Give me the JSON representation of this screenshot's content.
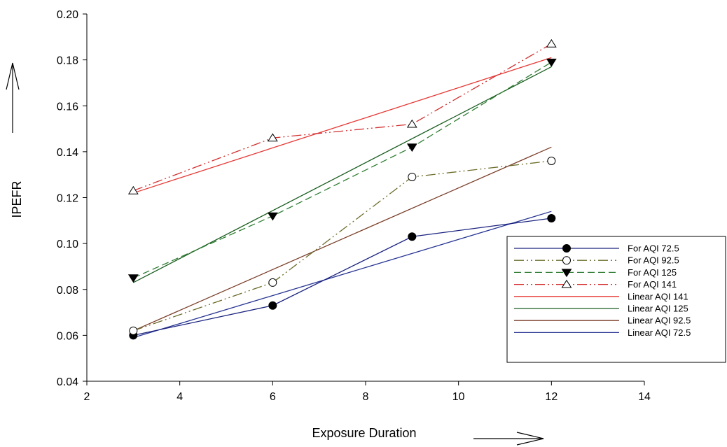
{
  "chart_data": {
    "type": "line",
    "title": "",
    "xlabel": "Exposure Duration",
    "ylabel": "IPEFR",
    "xlim": [
      2,
      14
    ],
    "ylim": [
      0.04,
      0.2
    ],
    "x_ticks": [
      2,
      4,
      6,
      8,
      10,
      12,
      14
    ],
    "y_ticks": [
      "0.04",
      "0.06",
      "0.08",
      "0.10",
      "0.12",
      "0.14",
      "0.16",
      "0.18",
      "0.20"
    ],
    "grid": false,
    "legend_position": "bottom-right",
    "series": [
      {
        "name": "For AQI 72.5",
        "x": [
          3,
          6,
          9,
          12
        ],
        "y": [
          0.06,
          0.073,
          0.103,
          0.111
        ],
        "color": "#1a237e",
        "dash": "solid",
        "marker": "filled-circle"
      },
      {
        "name": "For AQI 92.5",
        "x": [
          3,
          6,
          9,
          12
        ],
        "y": [
          0.062,
          0.083,
          0.129,
          0.136
        ],
        "color": "#6b6b2a",
        "dash": "dash-dot-dot",
        "marker": "open-circle"
      },
      {
        "name": "For AQI 125",
        "x": [
          3,
          6,
          9,
          12
        ],
        "y": [
          0.085,
          0.112,
          0.142,
          0.179
        ],
        "color": "#2e7d32",
        "dash": "dashed",
        "marker": "filled-triangle-down"
      },
      {
        "name": "For AQI 141",
        "x": [
          3,
          6,
          9,
          12
        ],
        "y": [
          0.123,
          0.146,
          0.152,
          0.187
        ],
        "color": "#d32f2f",
        "dash": "dash-dot-dot",
        "marker": "open-triangle-up"
      },
      {
        "name": "Linear AQI 141",
        "x": [
          3,
          12
        ],
        "y": [
          0.122,
          0.181
        ],
        "color": "#e53935",
        "dash": "solid",
        "marker": "none"
      },
      {
        "name": "Linear AQI 125",
        "x": [
          3,
          12
        ],
        "y": [
          0.083,
          0.177
        ],
        "color": "#1b5e20",
        "dash": "solid",
        "marker": "none"
      },
      {
        "name": "Linear AQI 92.5",
        "x": [
          3,
          12
        ],
        "y": [
          0.062,
          0.142
        ],
        "color": "#7b3f2a",
        "dash": "solid",
        "marker": "none"
      },
      {
        "name": "Linear AQI 72.5",
        "x": [
          3,
          12
        ],
        "y": [
          0.059,
          0.114
        ],
        "color": "#283593",
        "dash": "solid",
        "marker": "none"
      }
    ]
  }
}
